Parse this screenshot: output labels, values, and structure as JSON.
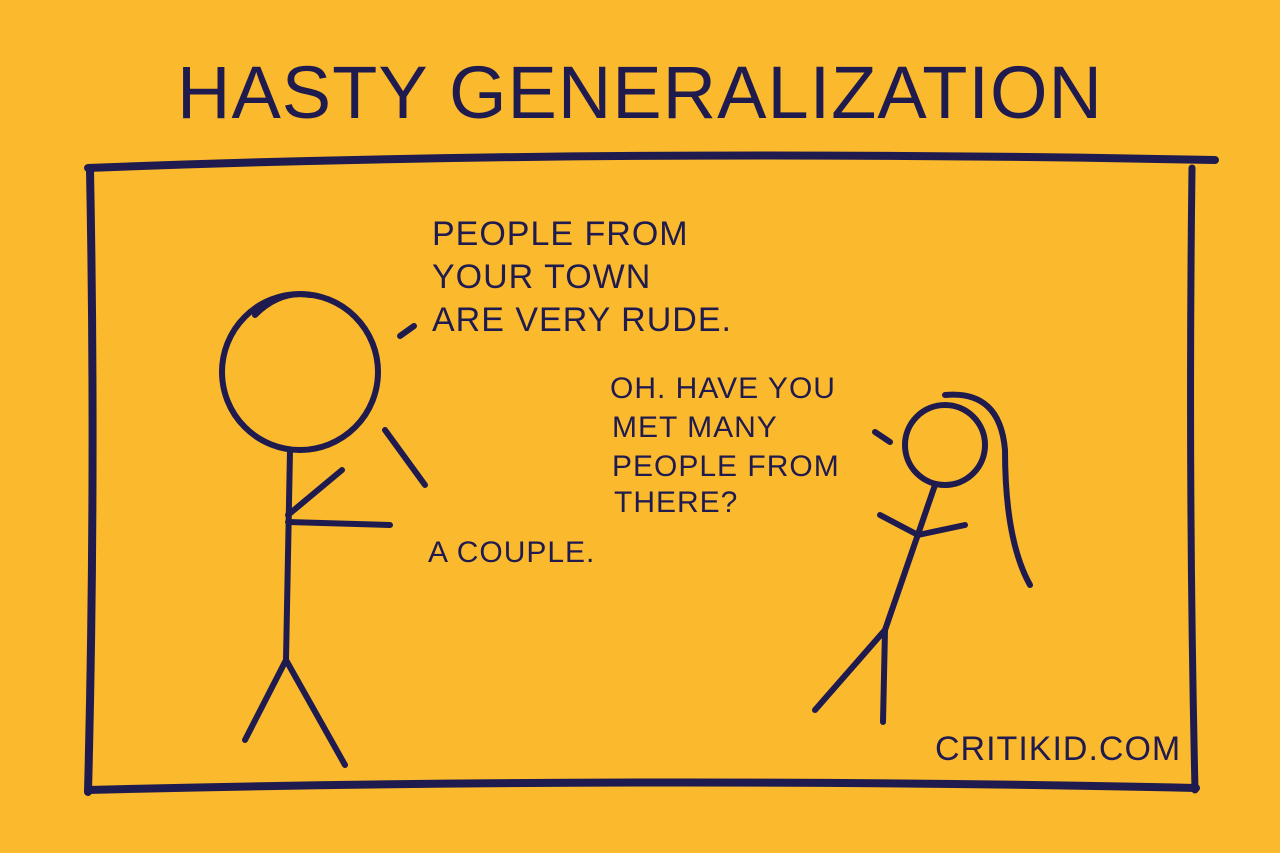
{
  "comic": {
    "title": "HASTY GENERALIZATION",
    "speech_1": [
      "PEOPLE FROM",
      "YOUR TOWN",
      "ARE VERY RUDE."
    ],
    "speech_2": [
      "OH. HAVE YOU",
      "MET MANY",
      "PEOPLE FROM",
      "THERE?"
    ],
    "speech_3": "A COUPLE.",
    "credit": "CRITIKID.COM",
    "colors": {
      "background": "#FBB92E",
      "ink": "#1F1B4E"
    }
  }
}
